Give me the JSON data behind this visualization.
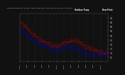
{
  "bg_color": "#111111",
  "plot_bg": "#111111",
  "temp_color": "#ff0000",
  "dew_color": "#0000ff",
  "grid_color": "#555555",
  "text_color": "#cccccc",
  "ylim": [
    20,
    75
  ],
  "ytick_vals": [
    25,
    30,
    35,
    40,
    45,
    50,
    55,
    60,
    65,
    70
  ],
  "n_minutes": 1440,
  "seed": 7,
  "legend_temp": "Outdoor Temp",
  "legend_dew": "Dew Point",
  "title": "Milwaukee Weather  Outdoor Temp / Dew Point  by Minute  (24 Hours) (Alternate)"
}
